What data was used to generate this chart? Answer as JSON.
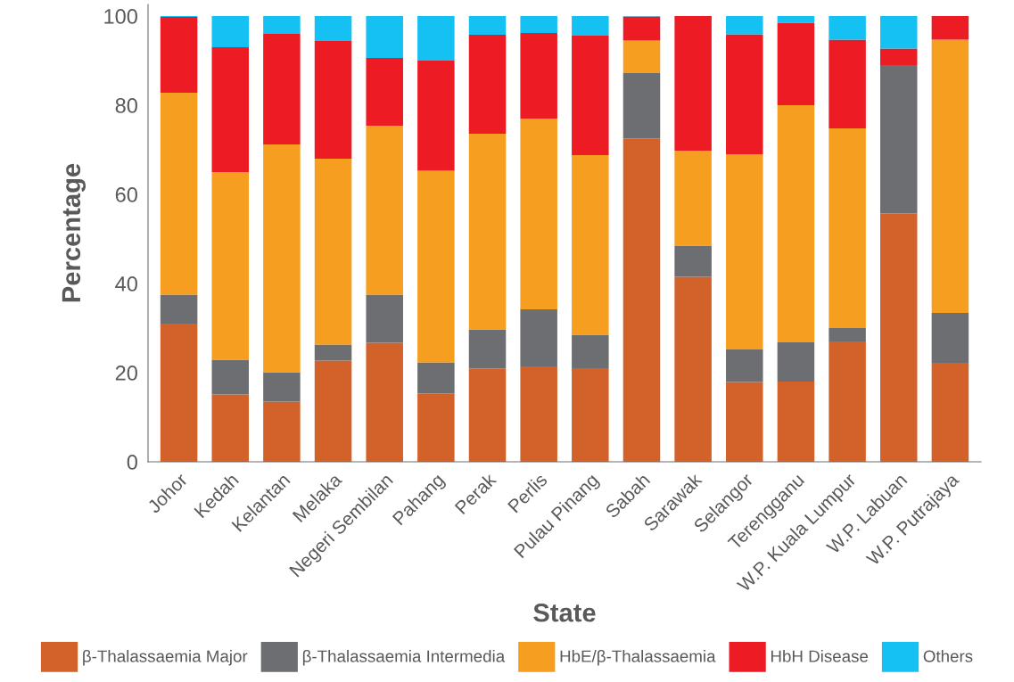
{
  "chart_data": {
    "type": "bar",
    "stacked": true,
    "xlabel": "State",
    "ylabel": "Percentage",
    "categories": [
      "Johor",
      "Kedah",
      "Kelantan",
      "Melaka",
      "Negeri Sembilan",
      "Pahang",
      "Perak",
      "Perlis",
      "Pulau Pinang",
      "Sabah",
      "Sarawak",
      "Selangor",
      "Terengganu",
      "W.P. Kuala Lumpur",
      "W.P. Labuan",
      "W.P. Putrajaya"
    ],
    "series": [
      {
        "name": "β-Thalassaemia Major",
        "color": "#d2622a",
        "values": [
          31.0,
          15.1,
          13.5,
          22.7,
          26.7,
          15.3,
          20.9,
          21.4,
          21.0,
          72.5,
          41.5,
          17.9,
          18.0,
          27.0,
          55.7,
          22.2
        ]
      },
      {
        "name": "β-Thalassaemia Intermedia",
        "color": "#6d6e71",
        "values": [
          6.5,
          7.8,
          6.6,
          3.6,
          10.8,
          7.0,
          8.8,
          12.8,
          7.5,
          14.7,
          7.0,
          7.3,
          8.8,
          3.0,
          33.3,
          11.2
        ]
      },
      {
        "name": "HbE/β-Thalassaemia",
        "color": "#f69e1f",
        "values": [
          45.3,
          42.1,
          51.1,
          41.7,
          37.9,
          43.0,
          43.9,
          42.8,
          40.3,
          7.3,
          21.3,
          43.8,
          53.2,
          44.8,
          0,
          61.3
        ]
      },
      {
        "name": "HbH Disease",
        "color": "#ed1c24",
        "values": [
          17.0,
          28.0,
          24.8,
          26.4,
          15.2,
          24.7,
          22.2,
          19.2,
          26.8,
          5.4,
          30.2,
          26.9,
          18.5,
          19.9,
          3.7,
          5.3
        ]
      },
      {
        "name": "Others",
        "color": "#15c0f2",
        "values": [
          0.2,
          7.0,
          4.0,
          5.6,
          9.4,
          10.0,
          4.2,
          3.8,
          4.4,
          0.1,
          0,
          4.1,
          1.5,
          5.3,
          7.3,
          0
        ]
      }
    ],
    "ylim": [
      0,
      102.6
    ],
    "yticks": [
      0,
      20,
      40,
      60,
      80,
      100
    ],
    "grid": false,
    "legend": "bottom"
  }
}
